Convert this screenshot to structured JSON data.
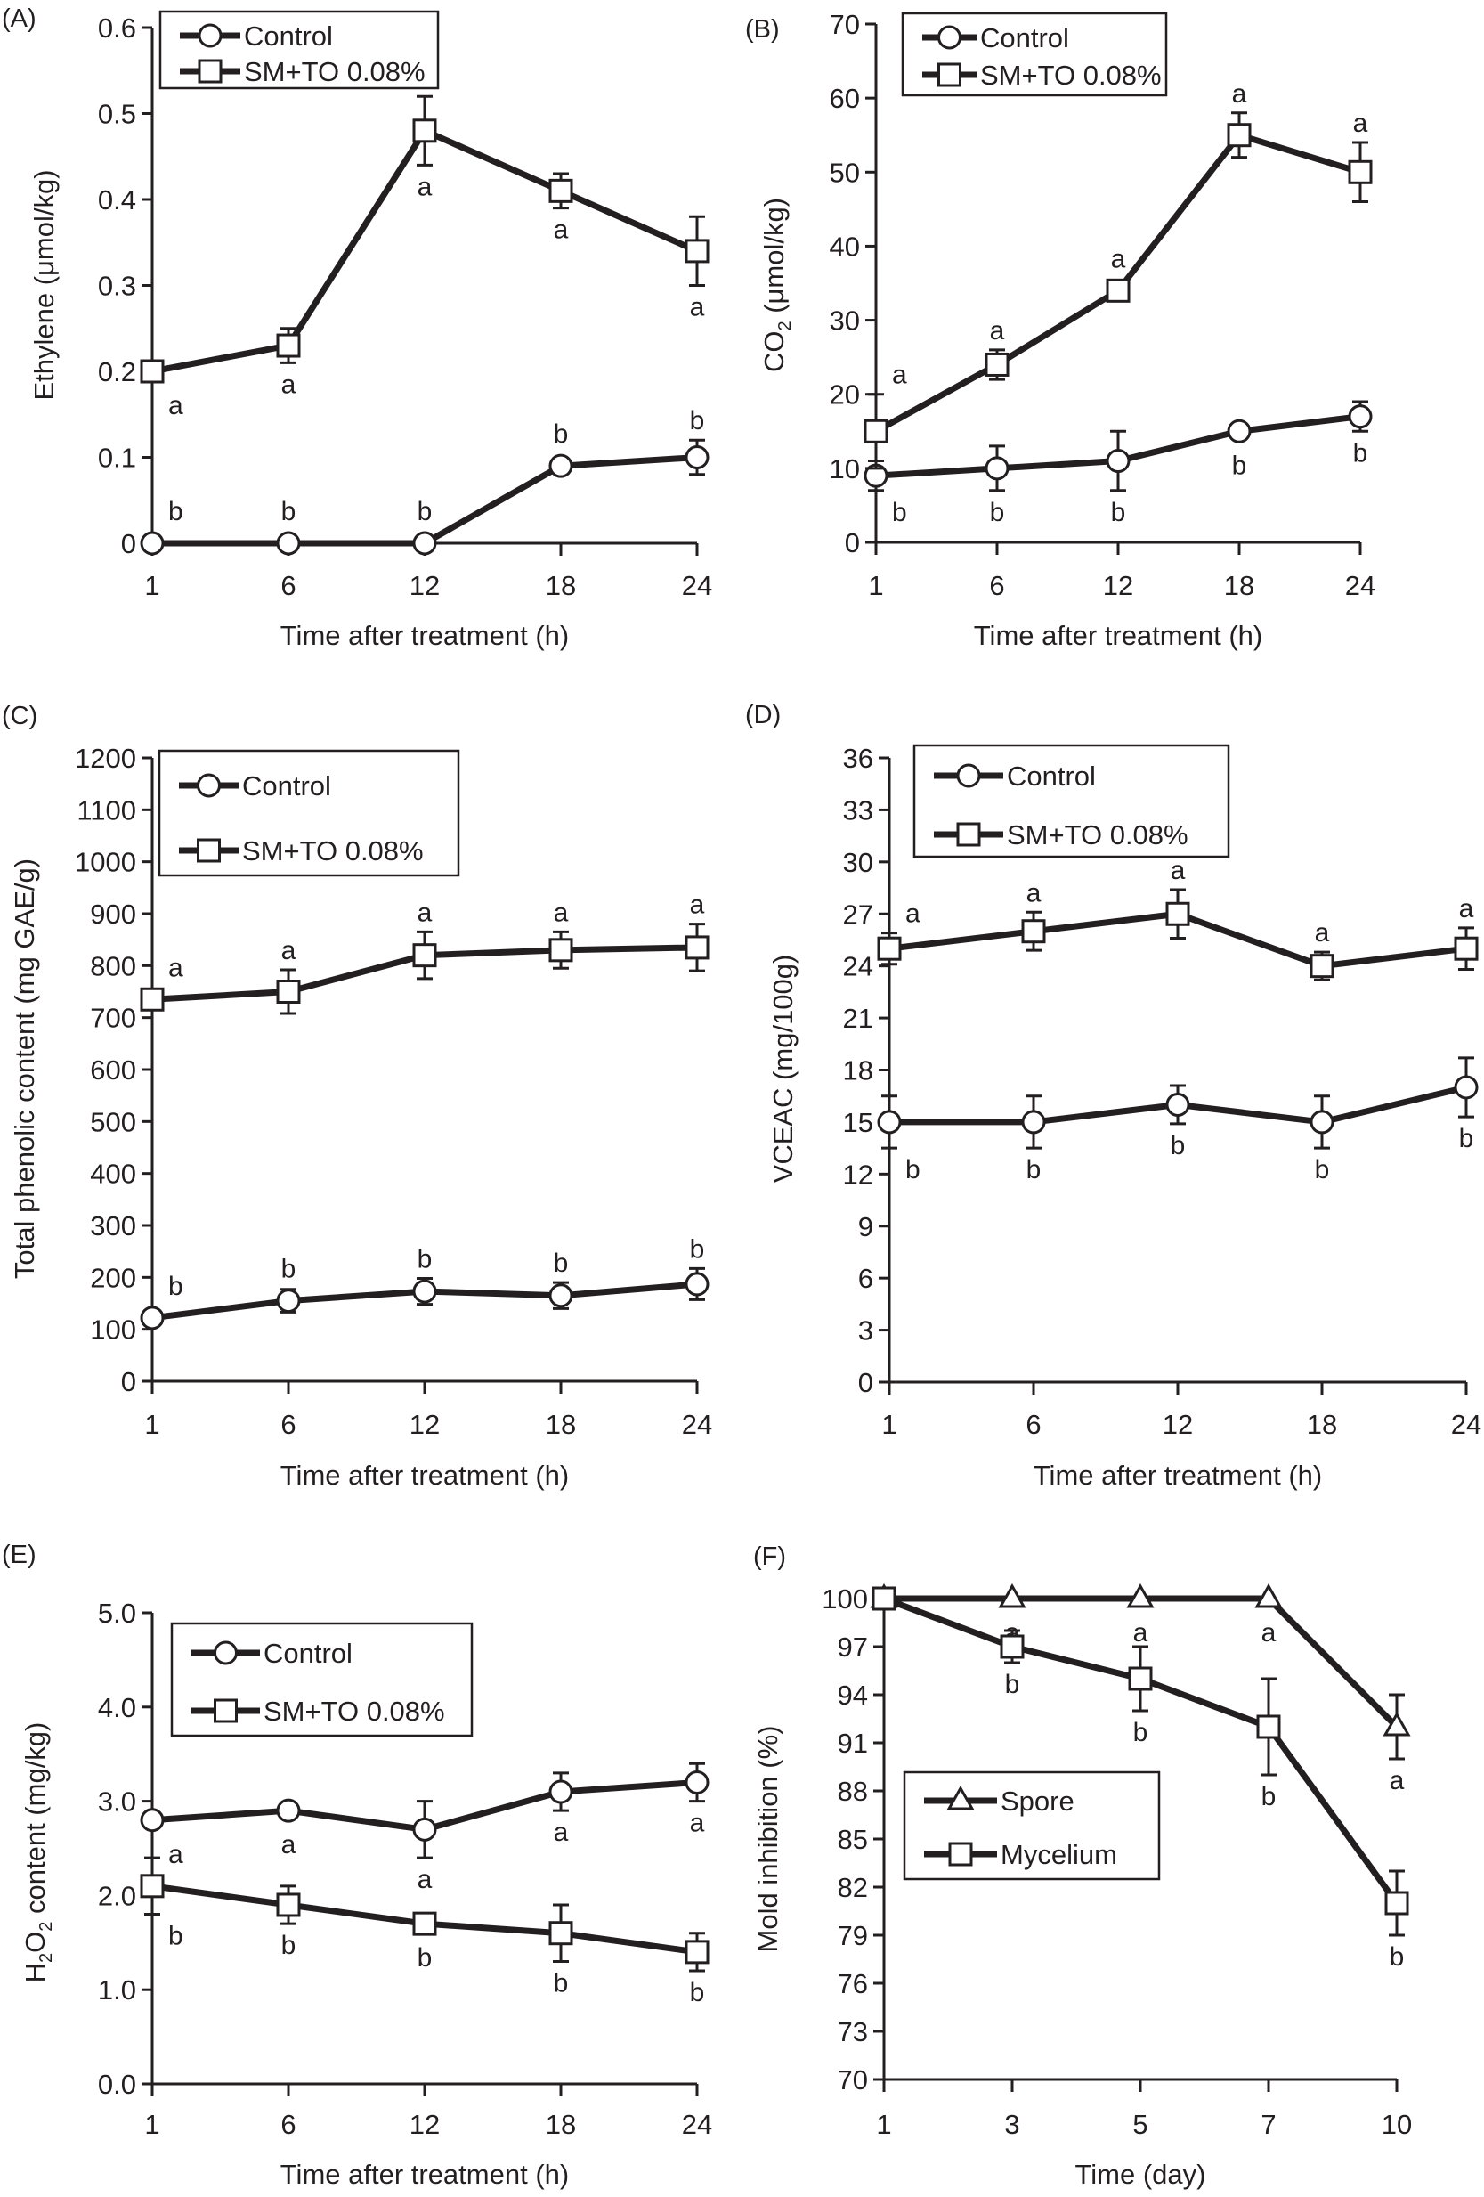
{
  "chart_data": [
    {
      "id": "A",
      "type": "line",
      "panel_label": "(A)",
      "title": "",
      "xlabel": "Time after treatment (h)",
      "ylabel": "Ethylene (μmol/kg)",
      "ylabel_sub": "",
      "categories": [
        "1",
        "6",
        "12",
        "18",
        "24"
      ],
      "ylim": [
        0,
        0.6
      ],
      "yticks": [
        0,
        0.1,
        0.2,
        0.3,
        0.4,
        0.5,
        0.6
      ],
      "ytick_labels": [
        "0",
        "0.1",
        "0.2",
        "0.3",
        "0.4",
        "0.5",
        "0.6"
      ],
      "grid": false,
      "legend_position": "top-left",
      "series": [
        {
          "name": "Control",
          "marker": "circle",
          "values": [
            0,
            0,
            0,
            0.09,
            0.1
          ],
          "errors": [
            0,
            0,
            0,
            0,
            0.02
          ],
          "letters": [
            "b",
            "b",
            "b",
            "b",
            "b"
          ],
          "letter_pos": [
            "above",
            "above",
            "above",
            "above",
            "above"
          ]
        },
        {
          "name": "SM+TO 0.08%",
          "marker": "square",
          "values": [
            0.2,
            0.23,
            0.48,
            0.41,
            0.34
          ],
          "errors": [
            0,
            0.02,
            0.04,
            0.02,
            0.04
          ],
          "letters": [
            "a",
            "a",
            "a",
            "a",
            "a"
          ],
          "letter_pos": [
            "below",
            "below",
            "below",
            "below",
            "below"
          ]
        }
      ]
    },
    {
      "id": "B",
      "type": "line",
      "panel_label": "(B)",
      "title": "",
      "xlabel": "Time after treatment (h)",
      "ylabel": "CO",
      "ylabel_sub": "2",
      "ylabel_rest": " (μmol/kg)",
      "categories": [
        "1",
        "6",
        "12",
        "18",
        "24"
      ],
      "ylim": [
        0,
        70
      ],
      "yticks": [
        0,
        10,
        20,
        30,
        40,
        50,
        60,
        70
      ],
      "ytick_labels": [
        "0",
        "10",
        "20",
        "30",
        "40",
        "50",
        "60",
        "70"
      ],
      "grid": false,
      "legend_position": "top-left",
      "series": [
        {
          "name": "Control",
          "marker": "circle",
          "values": [
            9,
            10,
            11,
            15,
            17
          ],
          "errors": [
            2,
            3,
            4,
            0,
            2
          ],
          "letters": [
            "b",
            "b",
            "b",
            "b",
            "b"
          ],
          "letter_pos": [
            "below",
            "below",
            "below",
            "below",
            "below"
          ]
        },
        {
          "name": "SM+TO 0.08%",
          "marker": "square",
          "values": [
            15,
            24,
            34,
            55,
            50
          ],
          "errors": [
            5,
            2,
            0,
            3,
            4
          ],
          "letters": [
            "a",
            "a",
            "a",
            "a",
            "a"
          ],
          "letter_pos": [
            "above",
            "above",
            "above",
            "above",
            "above"
          ]
        }
      ]
    },
    {
      "id": "C",
      "type": "line",
      "panel_label": "(C)",
      "title": "",
      "xlabel": "Time after treatment (h)",
      "ylabel": "Total phenolic content (mg GAE/g)",
      "ylabel_sub": "",
      "categories": [
        "1",
        "6",
        "12",
        "18",
        "24"
      ],
      "ylim": [
        0,
        1200
      ],
      "yticks": [
        0,
        100,
        200,
        300,
        400,
        500,
        600,
        700,
        800,
        900,
        1000,
        1100,
        1200
      ],
      "ytick_labels": [
        "0",
        "100",
        "200",
        "300",
        "400",
        "500",
        "600",
        "700",
        "800",
        "900",
        "1000",
        "1100",
        "1200"
      ],
      "grid": false,
      "legend_position": "top-left",
      "series": [
        {
          "name": "Control",
          "marker": "circle",
          "values": [
            122,
            155,
            173,
            165,
            187
          ],
          "errors": [
            0,
            22,
            25,
            25,
            30
          ],
          "letters": [
            "b",
            "b",
            "b",
            "b",
            "b"
          ],
          "letter_pos": [
            "above",
            "above",
            "above",
            "above",
            "above"
          ]
        },
        {
          "name": "SM+TO 0.08%",
          "marker": "square",
          "values": [
            735,
            750,
            820,
            830,
            835
          ],
          "errors": [
            20,
            42,
            45,
            35,
            45
          ],
          "letters": [
            "a",
            "a",
            "a",
            "a",
            "a"
          ],
          "letter_pos": [
            "above",
            "above",
            "above",
            "above",
            "above"
          ]
        }
      ]
    },
    {
      "id": "D",
      "type": "line",
      "panel_label": "(D)",
      "title": "",
      "xlabel": "Time after treatment (h)",
      "ylabel": "VCEAC (mg/100g)",
      "ylabel_sub": "",
      "categories": [
        "1",
        "6",
        "12",
        "18",
        "24"
      ],
      "ylim": [
        0,
        36
      ],
      "yticks": [
        0,
        3,
        6,
        9,
        12,
        15,
        18,
        21,
        24,
        27,
        30,
        33,
        36
      ],
      "ytick_labels": [
        "0",
        "3",
        "6",
        "9",
        "12",
        "15",
        "18",
        "21",
        "24",
        "27",
        "30",
        "33",
        "36"
      ],
      "grid": false,
      "legend_position": "top-left",
      "series": [
        {
          "name": "Control",
          "marker": "circle",
          "values": [
            15,
            15,
            16,
            15,
            17
          ],
          "errors": [
            1.5,
            1.5,
            1.1,
            1.5,
            1.7
          ],
          "letters": [
            "b",
            "b",
            "b",
            "b",
            "b"
          ],
          "letter_pos": [
            "below",
            "below",
            "below",
            "below",
            "below"
          ]
        },
        {
          "name": "SM+TO 0.08%",
          "marker": "square",
          "values": [
            25,
            26,
            27,
            24,
            25
          ],
          "errors": [
            0.9,
            1.1,
            1.4,
            0.8,
            1.2
          ],
          "letters": [
            "a",
            "a",
            "a",
            "a",
            "a"
          ],
          "letter_pos": [
            "above",
            "above",
            "above",
            "above",
            "above"
          ]
        }
      ]
    },
    {
      "id": "E",
      "type": "line",
      "panel_label": "(E)",
      "title": "",
      "xlabel": "Time after treatment (h)",
      "ylabel": "H",
      "ylabel_sub": "2",
      "ylabel_mid": "O",
      "ylabel_sub2": "2",
      "ylabel_rest": " content (mg/kg)",
      "categories": [
        "1",
        "6",
        "12",
        "18",
        "24"
      ],
      "ylim": [
        0,
        5
      ],
      "yticks": [
        0,
        1,
        2,
        3,
        4,
        5
      ],
      "ytick_labels": [
        "0.0",
        "1.0",
        "2.0",
        "3.0",
        "4.0",
        "5.0"
      ],
      "grid": false,
      "legend_position": "top-left",
      "series": [
        {
          "name": "Control",
          "marker": "circle",
          "values": [
            2.8,
            2.9,
            2.7,
            3.1,
            3.2
          ],
          "errors": [
            0,
            0,
            0.3,
            0.2,
            0.2
          ],
          "letters": [
            "a",
            "a",
            "a",
            "a",
            "a"
          ],
          "letter_pos": [
            "below",
            "below",
            "below",
            "below",
            "below"
          ]
        },
        {
          "name": "SM+TO 0.08%",
          "marker": "square",
          "values": [
            2.1,
            1.9,
            1.7,
            1.6,
            1.4
          ],
          "errors": [
            0.3,
            0.2,
            0,
            0.3,
            0.2
          ],
          "letters": [
            "b",
            "b",
            "b",
            "b",
            "b"
          ],
          "letter_pos": [
            "below",
            "below",
            "below",
            "below",
            "below"
          ]
        }
      ]
    },
    {
      "id": "F",
      "type": "line",
      "panel_label": "(F)",
      "title": "",
      "xlabel": "Time (day)",
      "ylabel": "Mold inhibition (%)",
      "ylabel_sub": "",
      "categories": [
        "1",
        "3",
        "5",
        "7",
        "10"
      ],
      "ylim": [
        70,
        100
      ],
      "yticks": [
        70,
        73,
        76,
        79,
        82,
        85,
        88,
        91,
        94,
        97,
        100
      ],
      "ytick_labels": [
        "70",
        "73",
        "76",
        "79",
        "82",
        "85",
        "88",
        "91",
        "94",
        "97",
        "100"
      ],
      "grid": false,
      "legend_position": "center-left",
      "series": [
        {
          "name": "Spore",
          "marker": "triangle",
          "values": [
            100,
            100,
            100,
            100,
            92
          ],
          "errors": [
            0,
            0,
            0,
            0,
            2
          ],
          "letters": [
            "",
            "a",
            "a",
            "a",
            "a"
          ],
          "letter_pos": [
            "below",
            "below",
            "below",
            "below",
            "below"
          ]
        },
        {
          "name": "Mycelium",
          "marker": "square",
          "values": [
            100,
            97,
            95,
            92,
            81
          ],
          "errors": [
            0,
            1,
            2,
            3,
            2
          ],
          "letters": [
            "",
            "b",
            "b",
            "b",
            "b"
          ],
          "letter_pos": [
            "below",
            "below",
            "below",
            "below",
            "below"
          ]
        }
      ]
    }
  ]
}
